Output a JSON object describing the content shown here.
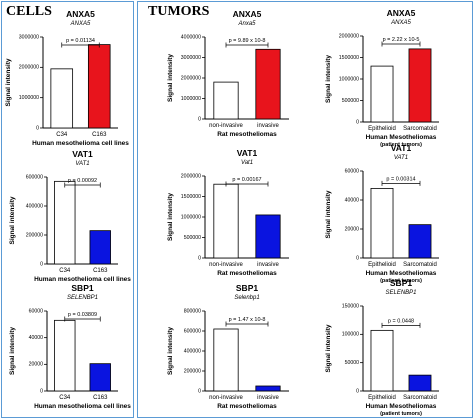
{
  "sections": {
    "cells": "CELLS",
    "tumors": "TUMORS"
  },
  "chart_data": [
    {
      "id": "cells-anxa5",
      "type": "bar",
      "title": "ANXA5",
      "subtitle": "ANXA5",
      "ylabel": "Signal intensity",
      "xlabel": "Human mesothelioma cell lines",
      "xlabel2": "",
      "categories": [
        "C34",
        "C163"
      ],
      "values": [
        1950000,
        2750000
      ],
      "bar_fills": [
        "#ffffff",
        "#e8141c"
      ],
      "ylim": [
        0,
        3000000
      ],
      "yticks": [
        0,
        1000000,
        2000000,
        3000000
      ],
      "ytick_labels": [
        "0",
        "1000000",
        "2000000",
        "3000000"
      ],
      "pvalue": "p = 0.01134"
    },
    {
      "id": "tumors-rat-anxa5",
      "type": "bar",
      "title": "ANXA5",
      "subtitle": "Anxa5",
      "ylabel": "Signal intensity",
      "xlabel": "Rat mesotheliomas",
      "xlabel2": "",
      "categories": [
        "non-invasive",
        "invasive"
      ],
      "values": [
        1800000,
        3400000
      ],
      "bar_fills": [
        "#ffffff",
        "#e8141c"
      ],
      "ylim": [
        0,
        4000000
      ],
      "yticks": [
        0,
        1000000,
        2000000,
        3000000,
        4000000
      ],
      "ytick_labels": [
        "0",
        "1000000",
        "2000000",
        "3000000",
        "4000000"
      ],
      "pvalue": "p = 9.89 x 10-8"
    },
    {
      "id": "tumors-human-anxa5",
      "type": "bar",
      "title": "ANXA5",
      "subtitle": "ANXA5",
      "ylabel": "Signal intensity",
      "xlabel": "Human Mesotheliomas",
      "xlabel2": "(patient tumors)",
      "categories": [
        "Epithelioid",
        "Sarcomatoid"
      ],
      "values": [
        1300000,
        1700000
      ],
      "bar_fills": [
        "#ffffff",
        "#e8141c"
      ],
      "ylim": [
        0,
        2000000
      ],
      "yticks": [
        0,
        500000,
        1000000,
        1500000,
        2000000
      ],
      "ytick_labels": [
        "0",
        "500000",
        "1000000",
        "1500000",
        "2000000"
      ],
      "pvalue": "p = 2.22 x 10-5"
    },
    {
      "id": "cells-vat1",
      "type": "bar",
      "title": "VAT1",
      "subtitle": "VAT1",
      "ylabel": "Signal intensity",
      "xlabel": "Human mesothelioma cell lines",
      "xlabel2": "",
      "categories": [
        "C34",
        "C163"
      ],
      "values": [
        570000,
        230000
      ],
      "bar_fills": [
        "#ffffff",
        "#0a14e0"
      ],
      "ylim": [
        0,
        600000
      ],
      "yticks": [
        0,
        200000,
        400000,
        600000
      ],
      "ytick_labels": [
        "0",
        "200000",
        "400000",
        "600000"
      ],
      "pvalue": "p = 0.00092"
    },
    {
      "id": "tumors-rat-vat1",
      "type": "bar",
      "title": "VAT1",
      "subtitle": "Vat1",
      "ylabel": "Signal intensity",
      "xlabel": "Rat mesotheliomas",
      "xlabel2": "",
      "categories": [
        "non-invasive",
        "invasive"
      ],
      "values": [
        1800000,
        1050000
      ],
      "bar_fills": [
        "#ffffff",
        "#0a14e0"
      ],
      "ylim": [
        0,
        2000000
      ],
      "yticks": [
        0,
        500000,
        1000000,
        1500000,
        2000000
      ],
      "ytick_labels": [
        "0",
        "500000",
        "1000000",
        "1500000",
        "2000000"
      ],
      "pvalue": "p = 0.00167"
    },
    {
      "id": "tumors-human-vat1",
      "type": "bar",
      "title": "VAT1",
      "subtitle": "VAT1",
      "ylabel": "Signal intensity",
      "xlabel": "Human Mesotheliomas",
      "xlabel2": "(patient tumors)",
      "categories": [
        "Epithelioid",
        "Sarcomatoid"
      ],
      "values": [
        48000,
        23000
      ],
      "bar_fills": [
        "#ffffff",
        "#0a14e0"
      ],
      "ylim": [
        0,
        60000
      ],
      "yticks": [
        0,
        20000,
        40000,
        60000
      ],
      "ytick_labels": [
        "0",
        "20000",
        "40000",
        "60000"
      ],
      "pvalue": "p = 0.00314"
    },
    {
      "id": "cells-sbp1",
      "type": "bar",
      "title": "SBP1",
      "subtitle": "SELENBP1",
      "ylabel": "Signal intensity",
      "xlabel": "Human mesothelioma cell lines",
      "xlabel2": "",
      "categories": [
        "C34",
        "C163"
      ],
      "values": [
        53000,
        20500
      ],
      "bar_fills": [
        "#ffffff",
        "#0a14e0"
      ],
      "ylim": [
        0,
        60000
      ],
      "yticks": [
        0,
        20000,
        40000,
        60000
      ],
      "ytick_labels": [
        "0",
        "20000",
        "40000",
        "60000"
      ],
      "pvalue": "p = 0.03809"
    },
    {
      "id": "tumors-rat-sbp1",
      "type": "bar",
      "title": "SBP1",
      "subtitle": "Selenbp1",
      "ylabel": "Signal intensity",
      "xlabel": "Rat mesotheliomas",
      "xlabel2": "",
      "categories": [
        "non-invasive",
        "invasive"
      ],
      "values": [
        620000,
        50000
      ],
      "bar_fills": [
        "#ffffff",
        "#0a14e0"
      ],
      "ylim": [
        0,
        800000
      ],
      "yticks": [
        0,
        200000,
        400000,
        600000,
        800000
      ],
      "ytick_labels": [
        "0",
        "200000",
        "400000",
        "600000",
        "800000"
      ],
      "pvalue": "p = 1.47 x 10-8"
    },
    {
      "id": "tumors-human-sbp1",
      "type": "bar",
      "title": "SBP1",
      "subtitle": "SELENBP1",
      "ylabel": "Signal intensity",
      "xlabel": "Human Mesotheliomas",
      "xlabel2": "(patient tumors)",
      "categories": [
        "Epithelioid",
        "Sarcomatoid"
      ],
      "values": [
        107000,
        28000
      ],
      "bar_fills": [
        "#ffffff",
        "#0a14e0"
      ],
      "ylim": [
        0,
        150000
      ],
      "yticks": [
        0,
        50000,
        100000,
        150000
      ],
      "ytick_labels": [
        "0",
        "50000",
        "100000",
        "150000"
      ],
      "pvalue": "p = 0.0448"
    }
  ]
}
